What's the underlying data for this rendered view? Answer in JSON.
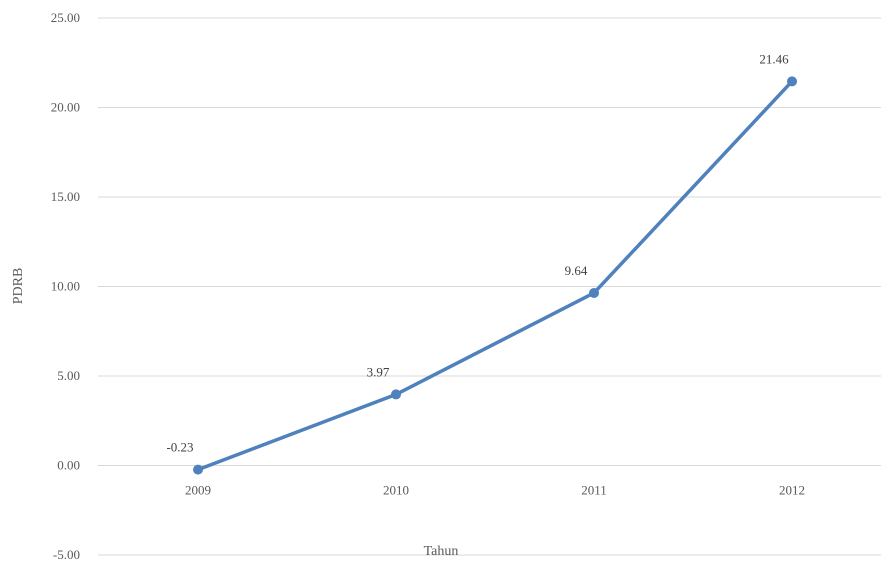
{
  "chart_data": {
    "type": "line",
    "title": "",
    "xlabel": "Tahun",
    "ylabel": "PDRB",
    "categories": [
      "2009",
      "2010",
      "2011",
      "2012"
    ],
    "series": [
      {
        "values": [
          -0.23,
          3.97,
          9.64,
          21.46
        ],
        "color": "#4f81bd"
      }
    ],
    "data_labels": [
      "-0.23",
      "3.97",
      "9.64",
      "21.46"
    ],
    "yticks": [
      "-5.00",
      "0.00",
      "5.00",
      "10.00",
      "15.00",
      "20.00",
      "25.00"
    ],
    "ylim": [
      -5,
      25
    ],
    "grid": true,
    "legend": "none"
  }
}
